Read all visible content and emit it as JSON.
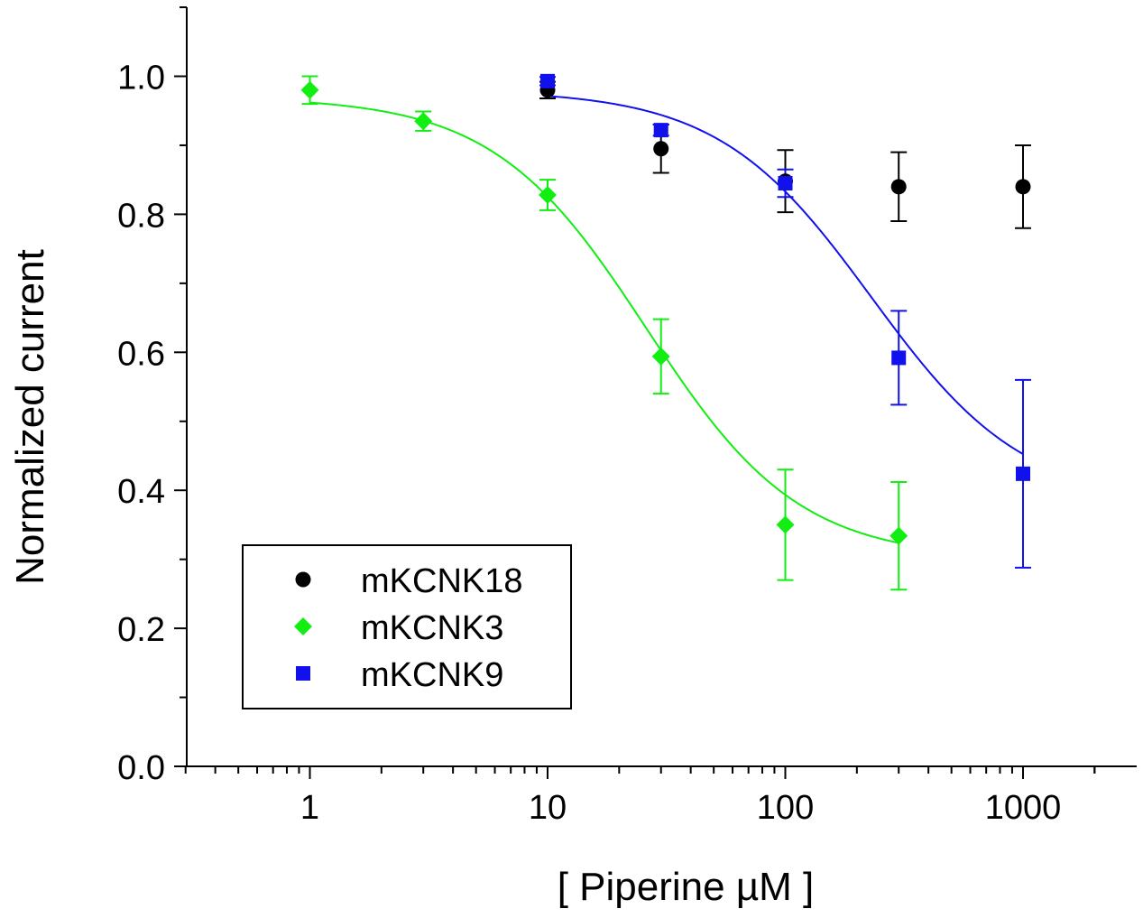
{
  "chart_data": {
    "type": "scatter",
    "title": "",
    "xlabel": "[ Piperine µM ]",
    "ylabel": "Normalized current",
    "xscale": "log",
    "xlim": [
      0.3,
      2500
    ],
    "ylim": [
      0.0,
      1.1
    ],
    "xticks": [
      1,
      10,
      100,
      1000
    ],
    "xtick_labels": [
      "1",
      "10",
      "100",
      "1000"
    ],
    "yticks": [
      0.0,
      0.2,
      0.4,
      0.6,
      0.8,
      1.0
    ],
    "ytick_labels": [
      "0.0",
      "0.2",
      "0.4",
      "0.6",
      "0.8",
      "1.0"
    ],
    "grid": false,
    "legend_position": "bottom-left",
    "series": [
      {
        "name": "mKCNK18",
        "marker": "circle",
        "color": "#000000",
        "x": [
          10,
          30,
          100,
          300,
          1000
        ],
        "y": [
          0.98,
          0.895,
          0.848,
          0.84,
          0.84
        ],
        "err": [
          0.012,
          0.035,
          0.045,
          0.05,
          0.06
        ],
        "fit": null
      },
      {
        "name": "mKCNK3",
        "marker": "diamond",
        "color": "#11ee11",
        "x": [
          1,
          3,
          10,
          30,
          100,
          300
        ],
        "y": [
          0.98,
          0.935,
          0.828,
          0.594,
          0.35,
          0.334
        ],
        "err": [
          0.02,
          0.014,
          0.022,
          0.054,
          0.08,
          0.078
        ],
        "fit": {
          "model": "hill",
          "top": 0.97,
          "bottom": 0.3,
          "ic50": 26,
          "hill": 1.35,
          "x_range": [
            1,
            300
          ]
        }
      },
      {
        "name": "mKCNK9",
        "marker": "square",
        "color": "#1111ee",
        "x": [
          10,
          30,
          100,
          300,
          1000
        ],
        "y": [
          0.993,
          0.922,
          0.845,
          0.592,
          0.424
        ],
        "err": [
          0.006,
          0.008,
          0.02,
          0.068,
          0.136
        ],
        "fit": {
          "model": "hill",
          "top": 0.98,
          "bottom": 0.38,
          "ic50": 230,
          "hill": 1.35,
          "x_range": [
            10,
            1000
          ]
        }
      }
    ]
  }
}
